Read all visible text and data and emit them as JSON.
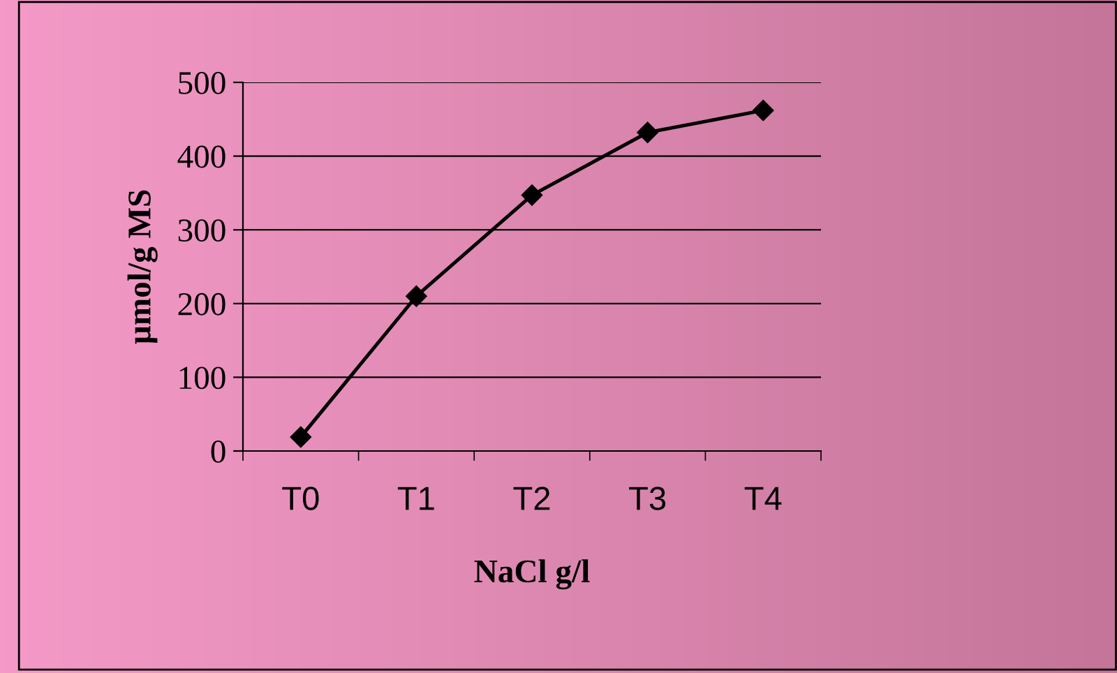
{
  "chart_data": {
    "type": "line",
    "xlabel": "NaCl g/l",
    "ylabel": "µmol/g MS",
    "categories": [
      "T0",
      "T1",
      "T2",
      "T3",
      "T4"
    ],
    "series": [
      {
        "color": "#000000",
        "values": [
          19,
          210,
          347,
          432,
          462
        ]
      }
    ],
    "ylim": [
      0,
      500
    ],
    "yticks": [
      0,
      100,
      200,
      300,
      400,
      500
    ],
    "grid": "y",
    "legend": false,
    "marker": "diamond",
    "line_style": "solid"
  }
}
